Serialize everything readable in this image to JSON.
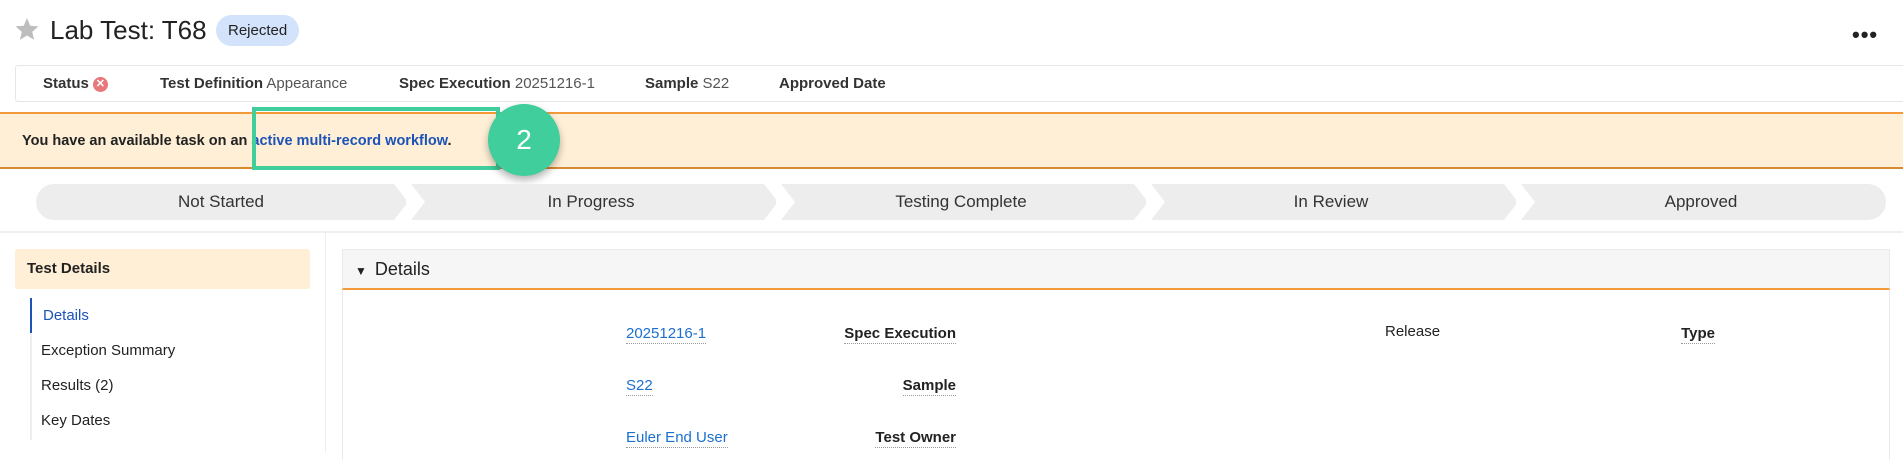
{
  "header": {
    "title": "Lab Test: T68",
    "status_badge": "Rejected",
    "more_label": "•••"
  },
  "summary": {
    "status_label": "Status",
    "status_icon": "x-circle-icon",
    "items": [
      {
        "label": "Test Definition",
        "value": "Appearance"
      },
      {
        "label": "Spec Execution",
        "value": "20251216-1"
      },
      {
        "label": "Sample",
        "value": "S22"
      },
      {
        "label": "Approved Date",
        "value": ""
      }
    ]
  },
  "banner": {
    "text": "You have an available task on an ",
    "link": "active multi-record workflow",
    "suffix": ".",
    "annotation_number": "2",
    "highlight_color": "#3fce9c"
  },
  "lifecycle": {
    "steps": [
      "Not Started",
      "In Progress",
      "Testing Complete",
      "In Review",
      "Approved"
    ]
  },
  "sidebar": {
    "header": "Test Details",
    "items": [
      {
        "label": "Details"
      },
      {
        "label": "Exception Summary"
      },
      {
        "label": "Results (2)"
      },
      {
        "label": "Key Dates"
      }
    ]
  },
  "details": {
    "section_title": "Details",
    "fields": [
      {
        "label": "Spec Execution",
        "value": "20251216-1"
      },
      {
        "label": "Sample",
        "value": "S22"
      },
      {
        "label": "Test Owner",
        "value": "Euler End User"
      },
      {
        "label": "Type",
        "value": "Release"
      }
    ]
  },
  "colors": {
    "accent_orange": "#f29a3a",
    "link_blue": "#1b53b8",
    "banner_bg": "#feefd6",
    "badge_bg": "#d3e3fb"
  }
}
